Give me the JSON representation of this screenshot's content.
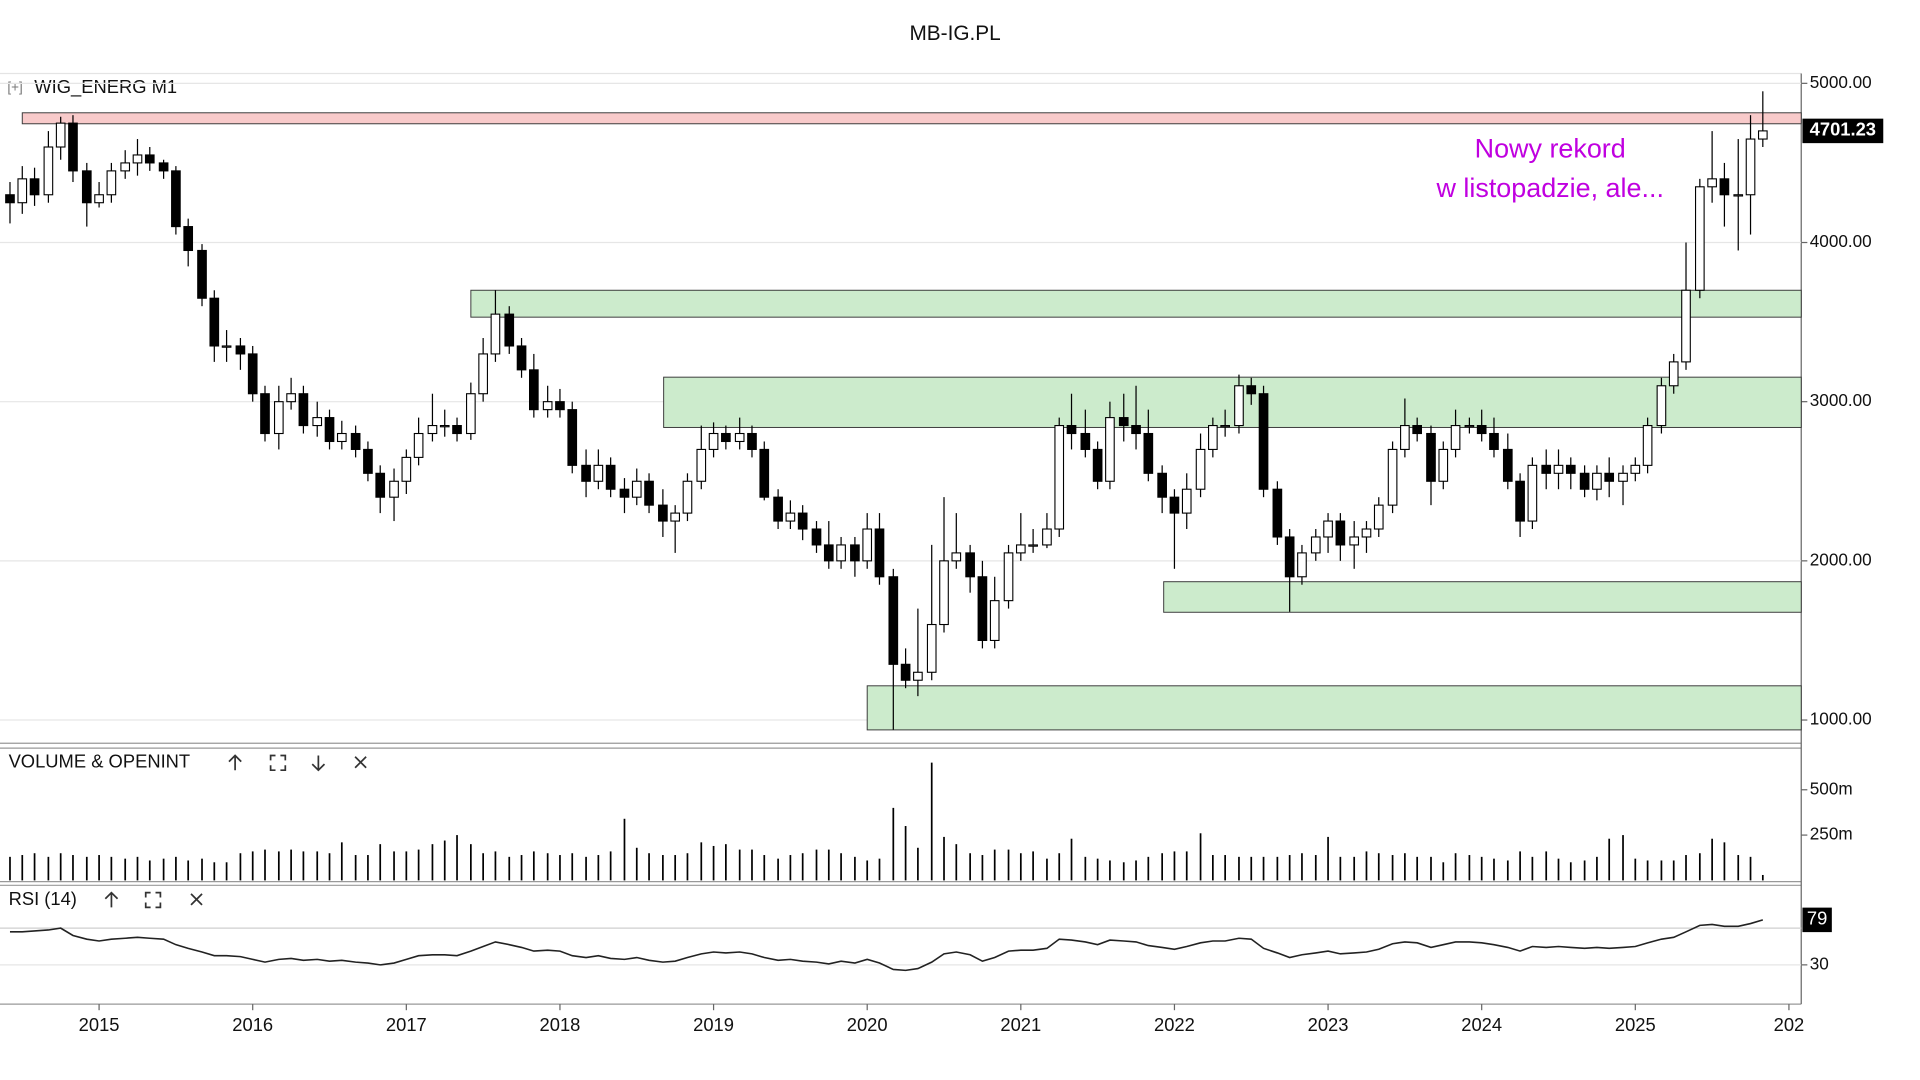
{
  "chart_data": [
    {
      "type": "candlestick",
      "title": "MB-IG.PL",
      "label_prefix": "[+]",
      "label": "WIG_ENERG M1",
      "x": [
        2014.42,
        2014.5,
        2014.58,
        2014.67,
        2014.75,
        2014.83,
        2014.92,
        2015,
        2015.08,
        2015.17,
        2015.25,
        2015.33,
        2015.42,
        2015.5,
        2015.58,
        2015.67,
        2015.75,
        2015.83,
        2015.92,
        2016,
        2016.08,
        2016.17,
        2016.25,
        2016.33,
        2016.42,
        2016.5,
        2016.58,
        2016.67,
        2016.75,
        2016.83,
        2016.92,
        2017,
        2017.08,
        2017.17,
        2017.25,
        2017.33,
        2017.42,
        2017.5,
        2017.58,
        2017.67,
        2017.75,
        2017.83,
        2017.92,
        2018,
        2018.08,
        2018.17,
        2018.25,
        2018.33,
        2018.42,
        2018.5,
        2018.58,
        2018.67,
        2018.75,
        2018.83,
        2018.92,
        2019,
        2019.08,
        2019.17,
        2019.25,
        2019.33,
        2019.42,
        2019.5,
        2019.58,
        2019.67,
        2019.75,
        2019.83,
        2019.92,
        2020,
        2020.08,
        2020.17,
        2020.25,
        2020.33,
        2020.42,
        2020.5,
        2020.58,
        2020.67,
        2020.75,
        2020.83,
        2020.92,
        2021,
        2021.08,
        2021.17,
        2021.25,
        2021.33,
        2021.42,
        2021.5,
        2021.58,
        2021.67,
        2021.75,
        2021.83,
        2021.92,
        2022,
        2022.08,
        2022.17,
        2022.25,
        2022.33,
        2022.42,
        2022.5,
        2022.58,
        2022.67,
        2022.75,
        2022.83,
        2022.92,
        2023,
        2023.08,
        2023.17,
        2023.25,
        2023.33,
        2023.42,
        2023.5,
        2023.58,
        2023.67,
        2023.75,
        2023.83,
        2023.92,
        2024,
        2024.08,
        2024.17,
        2024.25,
        2024.33,
        2024.42,
        2024.5,
        2024.58,
        2024.67,
        2024.75,
        2024.83,
        2024.92,
        2025,
        2025.08,
        2025.17,
        2025.25,
        2025.33,
        2025.42,
        2025.5,
        2025.58,
        2025.67,
        2025.75,
        2025.83
      ],
      "open": [
        4300,
        4250,
        4400,
        4300,
        4600,
        4750,
        4450,
        4250,
        4300,
        4450,
        4500,
        4550,
        4500,
        4450,
        4100,
        3950,
        3650,
        3350,
        3350,
        3300,
        3050,
        2800,
        3000,
        3050,
        2850,
        2900,
        2750,
        2800,
        2700,
        2550,
        2400,
        2500,
        2650,
        2800,
        2850,
        2850,
        2800,
        3050,
        3300,
        3550,
        3350,
        3200,
        2950,
        3000,
        2950,
        2600,
        2500,
        2600,
        2450,
        2400,
        2500,
        2350,
        2250,
        2300,
        2500,
        2700,
        2800,
        2750,
        2800,
        2700,
        2400,
        2250,
        2300,
        2200,
        2100,
        2000,
        2100,
        2000,
        2200,
        1900,
        1350,
        1250,
        1300,
        1600,
        2000,
        2050,
        1900,
        1500,
        1750,
        2050,
        2100,
        2100,
        2200,
        2850,
        2800,
        2700,
        2500,
        2900,
        2850,
        2800,
        2550,
        2400,
        2300,
        2450,
        2700,
        2850,
        2850,
        3100,
        3050,
        2450,
        2150,
        1900,
        2050,
        2150,
        2250,
        2100,
        2150,
        2200,
        2350,
        2700,
        2850,
        2800,
        2500,
        2700,
        2850,
        2850,
        2800,
        2700,
        2500,
        2250,
        2600,
        2550,
        2600,
        2550,
        2450,
        2550,
        2500,
        2550,
        2600,
        2850,
        3100,
        3250,
        3700,
        4350,
        4400,
        4300,
        4300,
        4650
      ],
      "high": [
        4380,
        4480,
        4470,
        4700,
        4790,
        4800,
        4500,
        4380,
        4500,
        4580,
        4650,
        4600,
        4520,
        4480,
        4150,
        3990,
        3700,
        3450,
        3400,
        3350,
        3100,
        3100,
        3150,
        3100,
        3000,
        2950,
        2880,
        2850,
        2750,
        2600,
        2580,
        2700,
        2900,
        3050,
        2950,
        2900,
        3120,
        3400,
        3700,
        3600,
        3400,
        3300,
        3100,
        3080,
        3000,
        2700,
        2700,
        2650,
        2520,
        2580,
        2550,
        2450,
        2350,
        2550,
        2850,
        2870,
        2850,
        2900,
        2850,
        2750,
        2450,
        2380,
        2350,
        2250,
        2250,
        2150,
        2150,
        2300,
        2300,
        1950,
        1450,
        1700,
        2100,
        2400,
        2300,
        2100,
        2000,
        1900,
        2100,
        2300,
        2200,
        2300,
        2900,
        3050,
        2950,
        2750,
        3000,
        3050,
        3100,
        2950,
        2600,
        2450,
        2550,
        2800,
        2900,
        2950,
        3170,
        3150,
        3100,
        2500,
        2200,
        2100,
        2200,
        2300,
        2300,
        2250,
        2250,
        2400,
        2750,
        3020,
        2900,
        2850,
        2750,
        2950,
        2900,
        2950,
        2900,
        2800,
        2550,
        2650,
        2700,
        2700,
        2650,
        2600,
        2600,
        2650,
        2600,
        2650,
        2900,
        3150,
        3300,
        4000,
        4400,
        4700,
        4500,
        4650,
        4800,
        4950
      ],
      "low": [
        4120,
        4180,
        4230,
        4250,
        4520,
        4380,
        4100,
        4220,
        4250,
        4400,
        4420,
        4450,
        4400,
        4050,
        3850,
        3600,
        3250,
        3250,
        3200,
        3000,
        2750,
        2700,
        2950,
        2800,
        2780,
        2700,
        2700,
        2650,
        2500,
        2300,
        2250,
        2420,
        2600,
        2750,
        2780,
        2750,
        2760,
        3000,
        3250,
        3300,
        3150,
        2900,
        2900,
        2900,
        2550,
        2400,
        2450,
        2400,
        2300,
        2350,
        2300,
        2150,
        2050,
        2250,
        2450,
        2650,
        2700,
        2700,
        2650,
        2380,
        2200,
        2200,
        2130,
        2050,
        1950,
        1950,
        1900,
        1950,
        1850,
        940,
        1200,
        1150,
        1250,
        1550,
        1950,
        1800,
        1450,
        1450,
        1700,
        2000,
        2050,
        2080,
        2150,
        2700,
        2650,
        2450,
        2450,
        2750,
        2700,
        2500,
        2300,
        1950,
        2200,
        2400,
        2650,
        2780,
        2800,
        2980,
        2400,
        2100,
        1680,
        1850,
        2000,
        2050,
        2000,
        1950,
        2050,
        2150,
        2300,
        2650,
        2750,
        2350,
        2450,
        2650,
        2800,
        2750,
        2650,
        2450,
        2150,
        2200,
        2450,
        2450,
        2450,
        2400,
        2380,
        2400,
        2350,
        2500,
        2550,
        2800,
        3050,
        3200,
        3650,
        4250,
        4100,
        3950,
        4050,
        4600
      ],
      "close": [
        4250,
        4400,
        4300,
        4600,
        4750,
        4450,
        4250,
        4300,
        4450,
        4500,
        4550,
        4500,
        4450,
        4100,
        3950,
        3650,
        3350,
        3350,
        3300,
        3050,
        2800,
        3000,
        3050,
        2850,
        2900,
        2750,
        2800,
        2700,
        2550,
        2400,
        2500,
        2650,
        2800,
        2850,
        2850,
        2800,
        3050,
        3300,
        3550,
        3350,
        3200,
        2950,
        3000,
        2950,
        2600,
        2500,
        2600,
        2450,
        2400,
        2500,
        2350,
        2250,
        2300,
        2500,
        2700,
        2800,
        2750,
        2800,
        2700,
        2400,
        2250,
        2300,
        2200,
        2100,
        2000,
        2100,
        2000,
        2200,
        1900,
        1350,
        1250,
        1300,
        1600,
        2000,
        2050,
        1900,
        1500,
        1750,
        2050,
        2100,
        2100,
        2200,
        2850,
        2800,
        2700,
        2500,
        2900,
        2850,
        2800,
        2550,
        2400,
        2300,
        2450,
        2700,
        2850,
        2850,
        3100,
        3050,
        2450,
        2150,
        1900,
        2050,
        2150,
        2250,
        2100,
        2150,
        2200,
        2350,
        2700,
        2850,
        2800,
        2500,
        2700,
        2850,
        2850,
        2800,
        2700,
        2500,
        2250,
        2600,
        2550,
        2600,
        2550,
        2450,
        2550,
        2500,
        2550,
        2600,
        2850,
        3100,
        3250,
        3700,
        4350,
        4400,
        4300,
        4300,
        4650,
        4701.23
      ],
      "up_color": "#ffffff",
      "down_color": "#000000",
      "xlim": [
        2014.355,
        2026.08
      ],
      "ylim": [
        854,
        5062
      ],
      "yticks": [
        {
          "value": 5000,
          "label": "5000.00"
        },
        {
          "value": 4000,
          "label": "4000.00"
        },
        {
          "value": 3000,
          "label": "3000.00"
        },
        {
          "value": 2000,
          "label": "2000.00"
        },
        {
          "value": 1000,
          "label": "1000.00"
        }
      ],
      "grid": true,
      "zones": [
        {
          "start": 2014.5,
          "top": 4815,
          "bottom": 4746,
          "color": "#f8caca"
        },
        {
          "start": 2017.42,
          "top": 3700,
          "bottom": 3531,
          "color": "#ccebcc"
        },
        {
          "start": 2018.675,
          "top": 3154,
          "bottom": 2838,
          "color": "#ccebcc"
        },
        {
          "start": 2021.93,
          "top": 1869,
          "bottom": 1677,
          "color": "#ccebcc"
        },
        {
          "start": 2020.0,
          "top": 1215,
          "bottom": 938,
          "color": "#ccebcc"
        }
      ],
      "annotation": [
        "Nowy rekord",
        "w listopadzie, ale..."
      ],
      "annotation_color": "#c000e0"
    },
    {
      "type": "bar",
      "title": "VOLUME & OPENINT",
      "color": "#000000",
      "values": [
        130,
        140,
        150,
        130,
        150,
        140,
        130,
        140,
        130,
        120,
        130,
        110,
        120,
        130,
        110,
        120,
        100,
        100,
        150,
        160,
        170,
        160,
        170,
        160,
        160,
        150,
        210,
        140,
        140,
        200,
        160,
        160,
        170,
        200,
        220,
        250,
        200,
        150,
        160,
        130,
        140,
        160,
        150,
        140,
        150,
        130,
        140,
        160,
        340,
        180,
        150,
        140,
        140,
        150,
        210,
        190,
        200,
        170,
        170,
        140,
        120,
        140,
        150,
        170,
        170,
        150,
        130,
        110,
        120,
        400,
        300,
        180,
        650,
        240,
        200,
        150,
        140,
        170,
        170,
        150,
        160,
        120,
        150,
        230,
        130,
        120,
        110,
        100,
        110,
        130,
        150,
        160,
        160,
        260,
        140,
        140,
        130,
        130,
        130,
        130,
        140,
        150,
        140,
        240,
        130,
        130,
        160,
        150,
        140,
        150,
        130,
        130,
        100,
        150,
        140,
        130,
        120,
        110,
        160,
        130,
        160,
        120,
        100,
        110,
        130,
        230,
        250,
        120,
        110,
        110,
        110,
        140,
        150,
        230,
        210,
        140,
        130,
        30
      ],
      "xlim": [
        2014.355,
        2026.08
      ],
      "ylim": [
        0,
        716
      ],
      "yticks": [
        {
          "value": 500,
          "label": "500m"
        },
        {
          "value": 250,
          "label": "250m"
        }
      ]
    },
    {
      "type": "line",
      "title": "RSI (14)",
      "color": "#222222",
      "values": [
        66,
        66,
        67,
        68,
        70,
        62,
        58,
        56,
        58,
        59,
        60,
        59,
        58,
        52,
        48,
        44,
        40,
        40,
        39,
        36,
        33,
        36,
        37,
        35,
        36,
        34,
        35,
        33,
        32,
        30,
        32,
        36,
        40,
        41,
        41,
        40,
        45,
        50,
        55,
        52,
        49,
        45,
        46,
        45,
        40,
        38,
        40,
        37,
        36,
        38,
        35,
        33,
        34,
        38,
        42,
        44,
        43,
        44,
        42,
        38,
        35,
        36,
        34,
        33,
        31,
        34,
        32,
        36,
        32,
        25,
        24,
        26,
        33,
        42,
        44,
        41,
        34,
        38,
        45,
        46,
        46,
        48,
        58,
        57,
        55,
        52,
        57,
        56,
        55,
        51,
        49,
        47,
        50,
        54,
        56,
        56,
        59,
        58,
        48,
        43,
        38,
        41,
        43,
        45,
        42,
        43,
        44,
        47,
        53,
        55,
        54,
        49,
        52,
        55,
        55,
        54,
        52,
        49,
        45,
        50,
        49,
        50,
        49,
        48,
        49,
        48,
        49,
        50,
        54,
        58,
        60,
        66,
        73,
        74,
        72,
        72,
        75,
        79
      ],
      "xlim": [
        2014.355,
        2026.08
      ],
      "ylim": [
        -12.7,
        115.3
      ],
      "yticks": [
        30
      ],
      "guide_lines": [
        70
      ],
      "xticks": [
        2015,
        2016,
        2017,
        2018,
        2019,
        2020,
        2021,
        2022,
        2023,
        2024,
        2025,
        {
          "value": 2026,
          "label": "202"
        }
      ]
    }
  ]
}
